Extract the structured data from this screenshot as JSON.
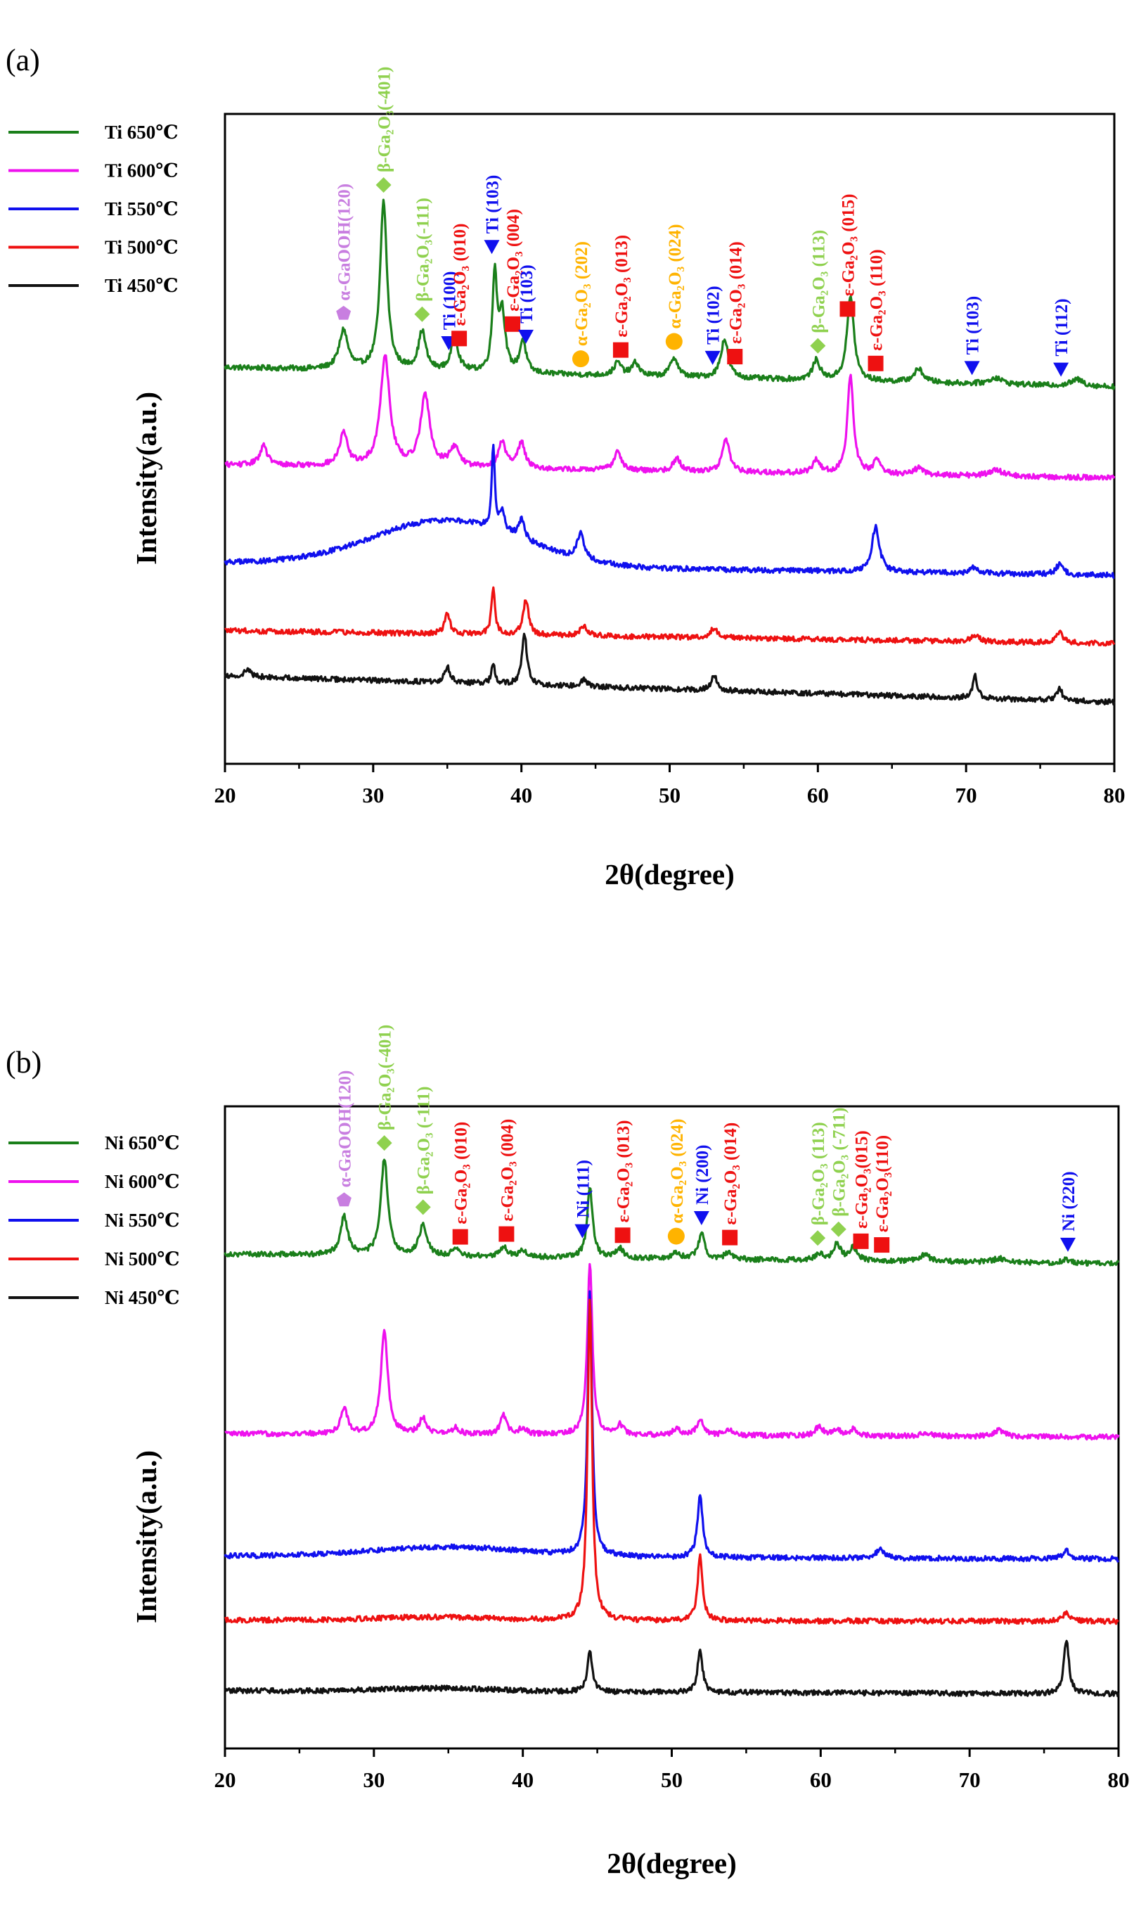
{
  "chart_data": [
    {
      "panel_label": "(a)",
      "type": "line",
      "xlabel": "2θ(degree)",
      "ylabel": "Intensity(a.u.)",
      "xlim": [
        20,
        80
      ],
      "xticks": [
        "20",
        "30",
        "40",
        "50",
        "60",
        "70",
        "80"
      ],
      "yticks": "none",
      "legend_position": "top-left outside plot",
      "series": [
        {
          "name": "Ti 650℃",
          "color": "#1a7f1a",
          "base_start": 0.61,
          "base_end": 0.58,
          "broad": [],
          "peaks": [
            [
              28.0,
              0.06,
              0.35
            ],
            [
              30.7,
              0.26,
              0.28
            ],
            [
              33.3,
              0.06,
              0.3
            ],
            [
              35.5,
              0.05,
              0.3
            ],
            [
              38.2,
              0.15,
              0.18
            ],
            [
              38.7,
              0.09,
              0.25
            ],
            [
              40.1,
              0.05,
              0.25
            ],
            [
              46.5,
              0.02,
              0.3
            ],
            [
              47.7,
              0.02,
              0.3
            ],
            [
              50.3,
              0.03,
              0.3
            ],
            [
              53.7,
              0.06,
              0.3
            ],
            [
              59.9,
              0.03,
              0.3
            ],
            [
              62.2,
              0.13,
              0.28
            ],
            [
              66.8,
              0.02,
              0.4
            ],
            [
              72.0,
              0.01,
              0.5
            ],
            [
              77.5,
              0.01,
              0.5
            ]
          ]
        },
        {
          "name": "Ti 600℃",
          "color": "#ee11ee",
          "base_start": 0.46,
          "base_end": 0.44,
          "broad": [],
          "peaks": [
            [
              22.6,
              0.03,
              0.3
            ],
            [
              28.0,
              0.05,
              0.32
            ],
            [
              30.8,
              0.17,
              0.38
            ],
            [
              33.5,
              0.11,
              0.38
            ],
            [
              35.5,
              0.03,
              0.4
            ],
            [
              38.7,
              0.04,
              0.3
            ],
            [
              40.0,
              0.04,
              0.3
            ],
            [
              46.5,
              0.03,
              0.3
            ],
            [
              50.5,
              0.02,
              0.3
            ],
            [
              53.8,
              0.05,
              0.3
            ],
            [
              59.9,
              0.02,
              0.3
            ],
            [
              62.2,
              0.15,
              0.25
            ],
            [
              64.0,
              0.02,
              0.3
            ],
            [
              66.8,
              0.01,
              0.4
            ],
            [
              72.0,
              0.01,
              0.5
            ]
          ]
        },
        {
          "name": "Ti 550℃",
          "color": "#1010ee",
          "base_start": 0.31,
          "base_end": 0.29,
          "broad": [
            [
              35.0,
              0.07,
              5.0
            ]
          ],
          "peaks": [
            [
              38.1,
              0.13,
              0.12
            ],
            [
              38.7,
              0.03,
              0.2
            ],
            [
              40.0,
              0.03,
              0.25
            ],
            [
              44.0,
              0.04,
              0.28
            ],
            [
              63.9,
              0.07,
              0.3
            ],
            [
              70.6,
              0.01,
              0.3
            ],
            [
              76.3,
              0.015,
              0.3
            ]
          ]
        },
        {
          "name": "Ti 500℃",
          "color": "#ee1111",
          "base_start": 0.205,
          "base_end": 0.185,
          "broad": [],
          "peaks": [
            [
              35.0,
              0.03,
              0.22
            ],
            [
              38.1,
              0.07,
              0.15
            ],
            [
              40.3,
              0.055,
              0.22
            ],
            [
              44.2,
              0.015,
              0.3
            ],
            [
              53.0,
              0.015,
              0.3
            ],
            [
              70.6,
              0.01,
              0.3
            ],
            [
              76.3,
              0.015,
              0.3
            ]
          ]
        },
        {
          "name": "Ti 450℃",
          "color": "#111111",
          "base_start": 0.135,
          "base_end": 0.095,
          "broad": [],
          "peaks": [
            [
              21.5,
              0.01,
              0.3
            ],
            [
              35.0,
              0.025,
              0.22
            ],
            [
              38.1,
              0.03,
              0.15
            ],
            [
              40.2,
              0.08,
              0.2
            ],
            [
              44.2,
              0.01,
              0.3
            ],
            [
              53.0,
              0.025,
              0.22
            ],
            [
              70.6,
              0.035,
              0.18
            ],
            [
              76.3,
              0.02,
              0.2
            ]
          ]
        }
      ],
      "annotations": [
        {
          "text": "α-GaOOH(120)",
          "x": 28.0,
          "marker": "pentagon",
          "color": "#c87ee0"
        },
        {
          "text": "β-Ga₂O₃(-401)",
          "x": 30.7,
          "marker": "diamond",
          "color": "#8fd14f"
        },
        {
          "text": "β-Ga₂O₃(-111)",
          "x": 33.3,
          "marker": "diamond",
          "color": "#8fd14f"
        },
        {
          "text": "Ti (100)",
          "x": 35.1,
          "marker": "triangle-down",
          "color": "#1010ee"
        },
        {
          "text": "ε-Ga₂O₃ (010)",
          "x": 35.8,
          "marker": "square",
          "color": "#ee1111"
        },
        {
          "text": "Ti (103)",
          "x": 38.0,
          "marker": "triangle-down",
          "color": "#1010ee"
        },
        {
          "text": "ε-Ga₂O₃ (004)",
          "x": 39.4,
          "marker": "square",
          "color": "#ee1111"
        },
        {
          "text": "Ti (103)",
          "x": 40.3,
          "marker": "triangle-down",
          "color": "#1010ee"
        },
        {
          "text": "α-Ga₂O₃ (202)",
          "x": 44.0,
          "marker": "circle",
          "color": "#ffb300"
        },
        {
          "text": "ε-Ga₂O₃ (013)",
          "x": 46.7,
          "marker": "square",
          "color": "#ee1111"
        },
        {
          "text": "α-Ga₂O₃ (024)",
          "x": 50.3,
          "marker": "circle",
          "color": "#ffb300"
        },
        {
          "text": "Ti (102)",
          "x": 52.9,
          "marker": "triangle-down",
          "color": "#1010ee"
        },
        {
          "text": "ε-Ga₂O₃ (014)",
          "x": 54.4,
          "marker": "square",
          "color": "#ee1111"
        },
        {
          "text": "β-Ga₂O₃ (113)",
          "x": 60.0,
          "marker": "diamond",
          "color": "#8fd14f"
        },
        {
          "text": "ε-Ga₂O₃ (015)",
          "x": 62.0,
          "marker": "square",
          "color": "#ee1111"
        },
        {
          "text": "ε-Ga₂O₃ (110)",
          "x": 63.9,
          "marker": "square",
          "color": "#ee1111"
        },
        {
          "text": "Ti (103)",
          "x": 70.4,
          "marker": "triangle-down",
          "color": "#1010ee"
        },
        {
          "text": "Ti (112)",
          "x": 76.4,
          "marker": "triangle-down",
          "color": "#1010ee"
        }
      ]
    },
    {
      "panel_label": "(b)",
      "type": "line",
      "xlabel": "2θ(degree)",
      "ylabel": "Intensity(a.u.)",
      "xlim": [
        20,
        80
      ],
      "xticks": [
        "20",
        "30",
        "40",
        "50",
        "60",
        "70",
        "80"
      ],
      "yticks": "none",
      "legend_position": "top-left outside plot",
      "series": [
        {
          "name": "Ni 650℃",
          "color": "#1a7f1a",
          "base_start": 0.77,
          "base_end": 0.755,
          "broad": [],
          "peaks": [
            [
              28.0,
              0.06,
              0.3
            ],
            [
              30.7,
              0.15,
              0.28
            ],
            [
              33.3,
              0.05,
              0.3
            ],
            [
              35.5,
              0.01,
              0.3
            ],
            [
              38.7,
              0.015,
              0.3
            ],
            [
              40.0,
              0.01,
              0.3
            ],
            [
              44.5,
              0.11,
              0.22
            ],
            [
              46.5,
              0.015,
              0.3
            ],
            [
              50.3,
              0.01,
              0.3
            ],
            [
              52.0,
              0.04,
              0.25
            ],
            [
              53.8,
              0.01,
              0.3
            ],
            [
              59.9,
              0.01,
              0.3
            ],
            [
              61.1,
              0.025,
              0.3
            ],
            [
              62.2,
              0.02,
              0.3
            ],
            [
              67.0,
              0.01,
              0.4
            ],
            [
              72.0,
              0.006,
              0.5
            ],
            [
              76.5,
              0.006,
              0.3
            ]
          ]
        },
        {
          "name": "Ni 600℃",
          "color": "#ee11ee",
          "base_start": 0.49,
          "base_end": 0.485,
          "broad": [],
          "peaks": [
            [
              28.0,
              0.04,
              0.28
            ],
            [
              30.7,
              0.16,
              0.28
            ],
            [
              33.3,
              0.025,
              0.3
            ],
            [
              35.5,
              0.01,
              0.3
            ],
            [
              38.7,
              0.03,
              0.25
            ],
            [
              40.0,
              0.01,
              0.3
            ],
            [
              44.5,
              0.27,
              0.2
            ],
            [
              46.5,
              0.015,
              0.3
            ],
            [
              50.3,
              0.01,
              0.3
            ],
            [
              51.9,
              0.025,
              0.25
            ],
            [
              53.8,
              0.01,
              0.3
            ],
            [
              59.9,
              0.015,
              0.3
            ],
            [
              61.1,
              0.01,
              0.3
            ],
            [
              62.2,
              0.01,
              0.3
            ],
            [
              67.0,
              0.006,
              0.4
            ],
            [
              72.0,
              0.01,
              0.4
            ]
          ]
        },
        {
          "name": "Ni 550℃",
          "color": "#1010ee",
          "base_start": 0.3,
          "base_end": 0.295,
          "broad": [
            [
              35.0,
              0.015,
              5.0
            ]
          ],
          "peaks": [
            [
              44.5,
              0.41,
              0.18
            ],
            [
              51.9,
              0.1,
              0.2
            ],
            [
              64.0,
              0.015,
              0.3
            ],
            [
              76.5,
              0.012,
              0.3
            ]
          ]
        },
        {
          "name": "Ni 500℃",
          "color": "#ee1111",
          "base_start": 0.2,
          "base_end": 0.198,
          "broad": [
            [
              34.0,
              0.005,
              4.0
            ]
          ],
          "peaks": [
            [
              44.5,
              0.5,
              0.18
            ],
            [
              51.9,
              0.1,
              0.2
            ],
            [
              76.5,
              0.015,
              0.25
            ]
          ]
        },
        {
          "name": "Ni 450℃",
          "color": "#111111",
          "base_start": 0.09,
          "base_end": 0.085,
          "broad": [
            [
              34.5,
              0.005,
              4.0
            ]
          ],
          "peaks": [
            [
              44.5,
              0.065,
              0.2
            ],
            [
              51.9,
              0.065,
              0.2
            ],
            [
              76.5,
              0.085,
              0.2
            ]
          ]
        }
      ],
      "annotations": [
        {
          "text": "α-GaOOH(120)",
          "x": 28.0,
          "marker": "pentagon",
          "color": "#c87ee0"
        },
        {
          "text": "β-Ga₂O₃(-401)",
          "x": 30.7,
          "marker": "diamond",
          "color": "#8fd14f"
        },
        {
          "text": "β-Ga₂O₃ (-111)",
          "x": 33.3,
          "marker": "diamond",
          "color": "#8fd14f"
        },
        {
          "text": "ε-Ga₂O₃ (010)",
          "x": 35.8,
          "marker": "square",
          "color": "#ee1111"
        },
        {
          "text": "ε-Ga₂O₃ (004)",
          "x": 38.9,
          "marker": "square",
          "color": "#ee1111"
        },
        {
          "text": "Ni (111)",
          "x": 44.0,
          "marker": "triangle-down",
          "color": "#1010ee"
        },
        {
          "text": "ε-Ga₂O₃ (013)",
          "x": 46.7,
          "marker": "square",
          "color": "#ee1111"
        },
        {
          "text": "α-Ga₂O₃ (024)",
          "x": 50.3,
          "marker": "circle",
          "color": "#ffb300"
        },
        {
          "text": "Ni (200)",
          "x": 52.0,
          "marker": "triangle-down",
          "color": "#1010ee"
        },
        {
          "text": "ε-Ga₂O₃ (014)",
          "x": 53.9,
          "marker": "square",
          "color": "#ee1111"
        },
        {
          "text": "β-Ga₂O₃ (113)",
          "x": 59.8,
          "marker": "diamond",
          "color": "#8fd14f"
        },
        {
          "text": "β-Ga₂O₃ (-711)",
          "x": 61.2,
          "marker": "diamond",
          "color": "#8fd14f"
        },
        {
          "text": "ε-Ga₂O₃(015)",
          "x": 62.7,
          "marker": "square",
          "color": "#ee1111"
        },
        {
          "text": "ε-Ga₂O₃(110)",
          "x": 64.1,
          "marker": "square",
          "color": "#ee1111"
        },
        {
          "text": "Ni (220)",
          "x": 76.6,
          "marker": "triangle-down",
          "color": "#1010ee"
        }
      ]
    }
  ]
}
